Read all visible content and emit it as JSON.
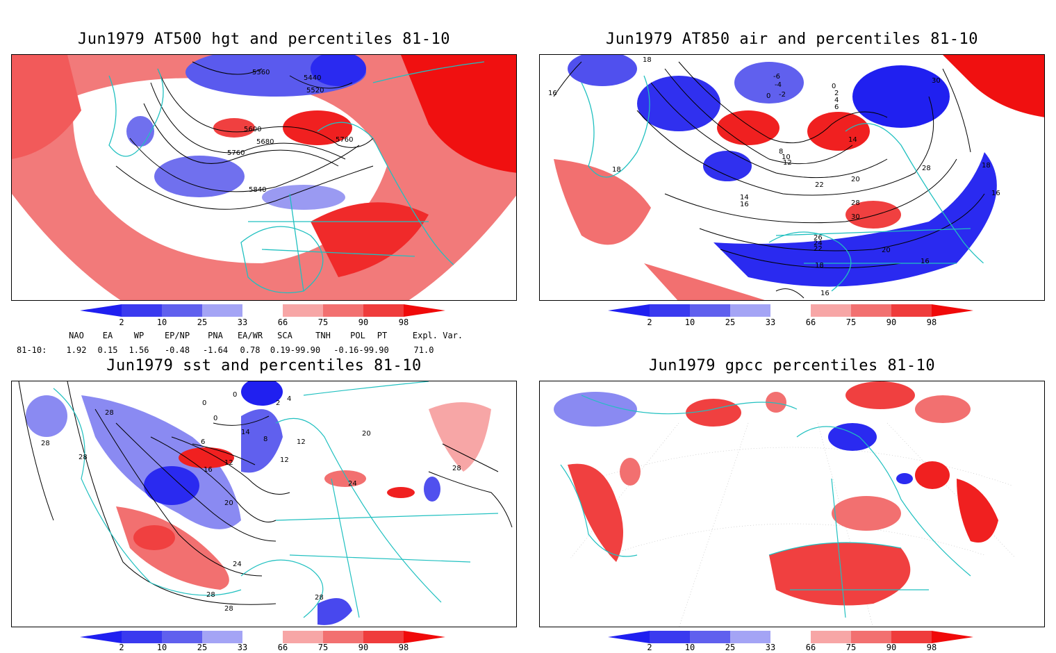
{
  "panels": [
    {
      "id": "p1",
      "title": "Jun1979 AT500 hgt and percentiles 81-10",
      "contour_labels": [
        "5360",
        "5440",
        "5520",
        "5600",
        "5680",
        "5760",
        "5760",
        "5840"
      ]
    },
    {
      "id": "p2",
      "title": "Jun1979 AT850 air and percentiles 81-10",
      "contour_labels": [
        "18",
        "16",
        "-6",
        "-4",
        "-2",
        "0",
        "0",
        "2",
        "4",
        "6",
        "30",
        "14",
        "8",
        "10",
        "12",
        "18",
        "28",
        "18",
        "16",
        "20",
        "22",
        "14",
        "16",
        "28",
        "30",
        "26",
        "24",
        "22",
        "20",
        "18",
        "16",
        "16"
      ]
    },
    {
      "id": "p3",
      "title": "Jun1979 sst and percentiles 81-10",
      "contour_labels": [
        "28",
        "28",
        "28",
        "0",
        "0",
        "2",
        "4",
        "0",
        "14",
        "8",
        "12",
        "6",
        "12",
        "16",
        "20",
        "12",
        "20",
        "24",
        "28",
        "24",
        "28",
        "28",
        "28"
      ]
    },
    {
      "id": "p4",
      "title": "Jun1979 gpcc percentiles 81-10",
      "contour_labels": []
    }
  ],
  "colorbar": {
    "labels": [
      "2",
      "10",
      "25",
      "33",
      "66",
      "75",
      "90",
      "98"
    ],
    "colors": {
      "blue_dark": "#1f1ff0",
      "blue_mid": "#4f4fee",
      "blue_light": "#8888f2",
      "blue_pale": "#b4b4f7",
      "red_pale": "#f7a6a6",
      "red_light": "#f27070",
      "red_mid": "#ef3c3c",
      "red_dark": "#f00a0a"
    }
  },
  "indices": {
    "headers": [
      "NAO",
      "EA",
      "WP",
      "EP/NP",
      "PNA",
      "EA/WR",
      "SCA",
      "TNH",
      "POL",
      "PT",
      "Expl. Var."
    ],
    "row_label": "81-10:",
    "values": [
      "1.92",
      "0.15",
      "1.56",
      "-0.48",
      "-1.64",
      "0.78",
      "0.19-99.90",
      "-0.16-99.90",
      "71.0"
    ]
  },
  "colors": {
    "coast": "#20c0c0",
    "contour": "#000000",
    "red": "#f02020",
    "blue": "#2a2af0",
    "pink": "#f7a6a6",
    "lightblue": "#a8a8f5"
  }
}
